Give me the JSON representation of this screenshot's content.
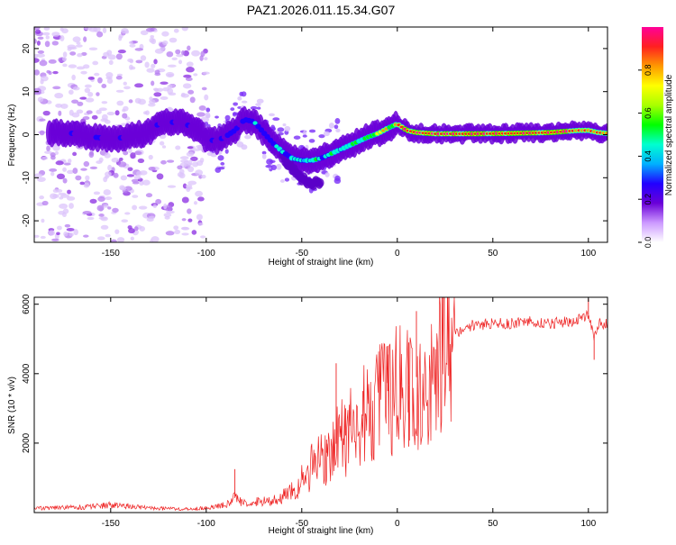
{
  "title": "PAZ1.2026.011.15.34.G07",
  "chart_data": [
    {
      "type": "heatmap",
      "id": "spectrogram",
      "xlabel": "Height of straight line (km)",
      "ylabel": "Frequency (Hz)",
      "xlim": [
        -190,
        110
      ],
      "ylim": [
        -25,
        25
      ],
      "xticks": [
        -150,
        -100,
        -50,
        0,
        50,
        100
      ],
      "yticks": [
        -20,
        -10,
        0,
        10,
        20
      ],
      "ridge": [
        {
          "x": -180,
          "y": 0.5
        },
        {
          "x": -170,
          "y": 0.3
        },
        {
          "x": -160,
          "y": -0.5
        },
        {
          "x": -150,
          "y": -1.0
        },
        {
          "x": -140,
          "y": -0.5
        },
        {
          "x": -130,
          "y": 0.5
        },
        {
          "x": -125,
          "y": 2.5
        },
        {
          "x": -115,
          "y": 3.0
        },
        {
          "x": -105,
          "y": 1.5
        },
        {
          "x": -100,
          "y": -1.0
        },
        {
          "x": -95,
          "y": -1.5
        },
        {
          "x": -90,
          "y": -0.5
        },
        {
          "x": -85,
          "y": 1.0
        },
        {
          "x": -80,
          "y": 3.5
        },
        {
          "x": -75,
          "y": 3.0
        },
        {
          "x": -70,
          "y": 0.5
        },
        {
          "x": -65,
          "y": -2.0
        },
        {
          "x": -60,
          "y": -4.0
        },
        {
          "x": -55,
          "y": -5.5
        },
        {
          "x": -50,
          "y": -6.0
        },
        {
          "x": -45,
          "y": -6.0
        },
        {
          "x": -40,
          "y": -5.5
        },
        {
          "x": -35,
          "y": -4.5
        },
        {
          "x": -30,
          "y": -3.5
        },
        {
          "x": -25,
          "y": -2.5
        },
        {
          "x": -20,
          "y": -1.5
        },
        {
          "x": -15,
          "y": -0.5
        },
        {
          "x": -10,
          "y": 0.3
        },
        {
          "x": -5,
          "y": 1.5
        },
        {
          "x": 0,
          "y": 2.5
        },
        {
          "x": 5,
          "y": 1.0
        },
        {
          "x": 10,
          "y": 0.5
        },
        {
          "x": 20,
          "y": 0.2
        },
        {
          "x": 40,
          "y": 0.2
        },
        {
          "x": 60,
          "y": 0.3
        },
        {
          "x": 80,
          "y": 0.5
        },
        {
          "x": 95,
          "y": 1.0
        },
        {
          "x": 100,
          "y": 1.0
        },
        {
          "x": 105,
          "y": 0.5
        },
        {
          "x": 110,
          "y": 0.3
        }
      ],
      "secondary_branch": [
        {
          "x": -60,
          "y": -5.0
        },
        {
          "x": -55,
          "y": -8.0
        },
        {
          "x": -50,
          "y": -10.0
        },
        {
          "x": -45,
          "y": -11.5
        },
        {
          "x": -40,
          "y": -11.0
        }
      ],
      "colorbar": {
        "label": "Normalized spectral amplitude",
        "ticks": [
          0.0,
          0.2,
          0.4,
          0.6,
          0.8
        ],
        "range": [
          0,
          1
        ],
        "colors": [
          "#ffffff",
          "#cc99ff",
          "#6a00d8",
          "#2200ff",
          "#00b0ff",
          "#00ffd0",
          "#00ff00",
          "#a8ff00",
          "#ffff00",
          "#ff9900",
          "#ff2020",
          "#ff0099"
        ]
      }
    },
    {
      "type": "line",
      "id": "snr",
      "xlabel": "Height of straight line (km)",
      "ylabel": "SNR (10 * v/v)",
      "xlim": [
        -190,
        110
      ],
      "ylim": [
        0,
        6200
      ],
      "xticks": [
        -150,
        -100,
        -50,
        0,
        50,
        100
      ],
      "yticks": [
        2000,
        4000,
        6000
      ],
      "color": "#ee2222",
      "series": [
        {
          "x": -190,
          "y": 120
        },
        {
          "x": -175,
          "y": 140
        },
        {
          "x": -160,
          "y": 170
        },
        {
          "x": -150,
          "y": 220
        },
        {
          "x": -140,
          "y": 180
        },
        {
          "x": -130,
          "y": 130
        },
        {
          "x": -120,
          "y": 110
        },
        {
          "x": -110,
          "y": 100
        },
        {
          "x": -100,
          "y": 130
        },
        {
          "x": -90,
          "y": 220
        },
        {
          "x": -85,
          "y": 420
        },
        {
          "x": -80,
          "y": 280
        },
        {
          "x": -70,
          "y": 320
        },
        {
          "x": -60,
          "y": 420
        },
        {
          "x": -55,
          "y": 600
        },
        {
          "x": -50,
          "y": 900
        },
        {
          "x": -45,
          "y": 1300
        },
        {
          "x": -40,
          "y": 1600
        },
        {
          "x": -35,
          "y": 1800
        },
        {
          "x": -30,
          "y": 2100
        },
        {
          "x": -25,
          "y": 2300
        },
        {
          "x": -20,
          "y": 2700
        },
        {
          "x": -15,
          "y": 2900
        },
        {
          "x": -10,
          "y": 3200
        },
        {
          "x": -5,
          "y": 3500
        },
        {
          "x": 0,
          "y": 3700
        },
        {
          "x": 5,
          "y": 3600
        },
        {
          "x": 10,
          "y": 3900
        },
        {
          "x": 15,
          "y": 4000
        },
        {
          "x": 20,
          "y": 4300
        },
        {
          "x": 25,
          "y": 4800
        },
        {
          "x": 30,
          "y": 5100
        },
        {
          "x": 35,
          "y": 5300
        },
        {
          "x": 40,
          "y": 5400
        },
        {
          "x": 50,
          "y": 5450
        },
        {
          "x": 60,
          "y": 5450
        },
        {
          "x": 70,
          "y": 5500
        },
        {
          "x": 80,
          "y": 5450
        },
        {
          "x": 90,
          "y": 5500
        },
        {
          "x": 95,
          "y": 5600
        },
        {
          "x": 100,
          "y": 5700
        },
        {
          "x": 103,
          "y": 5000
        },
        {
          "x": 106,
          "y": 5500
        },
        {
          "x": 110,
          "y": 5400
        }
      ],
      "spikes": [
        {
          "x": -85,
          "y": 1250
        },
        {
          "x": -37,
          "y": 2100
        },
        {
          "x": -32,
          "y": 4300
        },
        {
          "x": -27,
          "y": 3000
        },
        {
          "x": -18,
          "y": 3500
        },
        {
          "x": -5,
          "y": 4800
        },
        {
          "x": 6,
          "y": 4900
        },
        {
          "x": 10,
          "y": 5800
        },
        {
          "x": 6,
          "y": 1900
        },
        {
          "x": 100,
          "y": 6150
        },
        {
          "x": 103,
          "y": 4400
        }
      ]
    }
  ]
}
